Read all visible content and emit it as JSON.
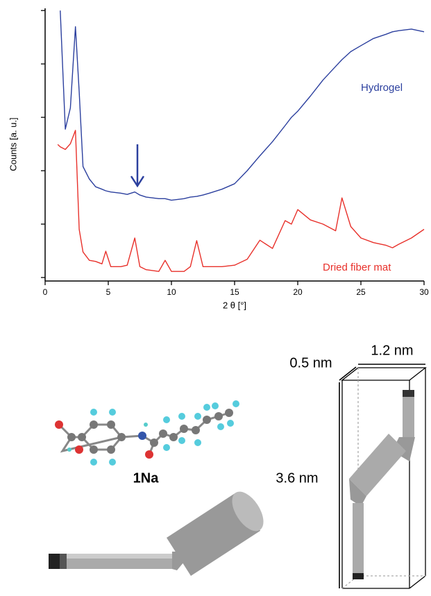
{
  "chart_data": {
    "type": "line",
    "ylabel": "Counts [a. u.]",
    "xlabel": "2 θ [°]",
    "annotations": [
      "Hydrogel",
      "Dried fiber mat"
    ],
    "log_y": true,
    "x": [
      1,
      1.2,
      1.6,
      2,
      2.4,
      2.7,
      3,
      3.5,
      4,
      4.5,
      4.8,
      5.2,
      6,
      6.5,
      7.1,
      7.5,
      8,
      9,
      9.5,
      10,
      11,
      11.5,
      12,
      12.5,
      13,
      14,
      15,
      16,
      17,
      18,
      19,
      19.5,
      20,
      21,
      22,
      23,
      23.5,
      24.2,
      25,
      26,
      27,
      27.5,
      28,
      29,
      30
    ],
    "series": [
      {
        "name": "Hydrogel",
        "color": "#2b3f9e",
        "values": [
          null,
          100000,
          600,
          1500,
          50000,
          3000,
          120,
          70,
          50,
          45,
          42,
          40,
          38,
          36,
          40,
          35,
          32,
          30,
          30,
          28,
          30,
          32,
          33,
          35,
          38,
          45,
          57,
          100,
          190,
          350,
          700,
          1000,
          1300,
          2500,
          5000,
          9000,
          12000,
          17000,
          22000,
          30000,
          36000,
          40000,
          42000,
          45000,
          40000
        ]
      },
      {
        "name": "Dried fiber mat",
        "color": "#e8302a",
        "values": [
          310,
          280,
          250,
          320,
          570,
          8,
          3,
          2.1,
          2,
          1.8,
          3.1,
          1.6,
          1.6,
          1.7,
          5.5,
          1.6,
          1.4,
          1.3,
          2.1,
          1.3,
          1.3,
          1.6,
          4.9,
          1.6,
          1.6,
          1.6,
          1.7,
          2.2,
          5,
          3.5,
          11.6,
          10,
          18.7,
          12,
          10,
          7.5,
          31,
          9,
          5.5,
          4.5,
          4,
          3.6,
          4.2,
          5.5,
          8
        ]
      }
    ],
    "xlim": [
      0,
      30
    ],
    "xticks": [
      0,
      5,
      10,
      15,
      20,
      25,
      30
    ],
    "ylim": [
      0.86,
      110000
    ],
    "yticks": [
      1,
      10,
      100,
      1000,
      10000,
      100000
    ]
  },
  "diagram": {
    "molecule_label": "1Na",
    "width": "1.2 nm",
    "depth": "0.5 nm",
    "length": "3.6 nm"
  }
}
